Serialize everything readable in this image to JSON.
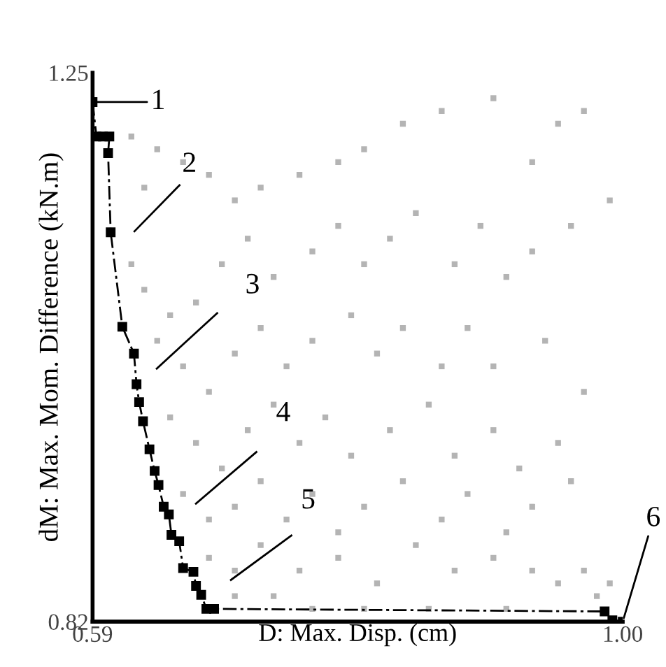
{
  "chart_data": {
    "type": "scatter",
    "xlabel": "D: Max. Disp. (cm)",
    "ylabel": "dM: Max. Mom. Difference (kN.m)",
    "xlim": [
      0.59,
      1.0
    ],
    "ylim": [
      0.82,
      1.25
    ],
    "xticks": [
      0.59,
      {
        "value": 1.0,
        "label": "1.00"
      }
    ],
    "yticks": [
      0.82,
      1.25
    ],
    "grid": false,
    "legend": false,
    "series": [
      {
        "color": "#b4b4b4",
        "marker": "square",
        "x": [
          0.62,
          0.64,
          0.66,
          0.63,
          0.68,
          0.7,
          0.72,
          0.75,
          0.78,
          0.8,
          0.83,
          0.86,
          0.9,
          0.95,
          0.97,
          0.93,
          0.62,
          0.63,
          0.65,
          0.64,
          0.67,
          0.69,
          0.71,
          0.73,
          0.76,
          0.78,
          0.8,
          0.82,
          0.84,
          0.87,
          0.89,
          0.91,
          0.93,
          0.96,
          0.99,
          0.66,
          0.68,
          0.7,
          0.72,
          0.74,
          0.76,
          0.79,
          0.81,
          0.83,
          0.86,
          0.88,
          0.9,
          0.94,
          0.97,
          0.65,
          0.67,
          0.69,
          0.71,
          0.73,
          0.75,
          0.77,
          0.79,
          0.82,
          0.85,
          0.87,
          0.9,
          0.92,
          0.95,
          0.66,
          0.68,
          0.7,
          0.72,
          0.74,
          0.76,
          0.78,
          0.8,
          0.83,
          0.86,
          0.88,
          0.91,
          0.93,
          0.96,
          0.68,
          0.7,
          0.72,
          0.75,
          0.78,
          0.81,
          0.84,
          0.87,
          0.9,
          0.93,
          0.95,
          0.97,
          0.98,
          0.99,
          0.7,
          0.73,
          0.76,
          0.8,
          0.85,
          0.91
        ],
        "values": [
          1.2,
          1.19,
          1.18,
          1.16,
          1.17,
          1.15,
          1.16,
          1.17,
          1.18,
          1.19,
          1.21,
          1.22,
          1.23,
          1.21,
          1.22,
          1.18,
          1.1,
          1.08,
          1.06,
          1.04,
          1.07,
          1.1,
          1.12,
          1.09,
          1.11,
          1.13,
          1.1,
          1.12,
          1.14,
          1.1,
          1.13,
          1.09,
          1.11,
          1.13,
          1.15,
          1.02,
          1.0,
          1.03,
          1.05,
          1.02,
          1.04,
          1.06,
          1.03,
          1.05,
          1.02,
          1.05,
          1.02,
          1.04,
          1.0,
          0.98,
          0.96,
          0.94,
          0.97,
          0.99,
          0.96,
          0.98,
          0.95,
          0.97,
          0.99,
          0.95,
          0.97,
          0.94,
          0.96,
          0.92,
          0.9,
          0.91,
          0.93,
          0.9,
          0.92,
          0.89,
          0.91,
          0.93,
          0.9,
          0.92,
          0.89,
          0.91,
          0.93,
          0.87,
          0.86,
          0.88,
          0.86,
          0.87,
          0.85,
          0.88,
          0.86,
          0.87,
          0.86,
          0.85,
          0.86,
          0.84,
          0.85,
          0.84,
          0.84,
          0.83,
          0.83,
          0.83,
          0.83
        ]
      },
      {
        "type": "line",
        "color": "#000000",
        "marker": "square",
        "line_style": "dashed",
        "x": [
          0.59,
          0.593,
          0.598,
          0.603,
          0.602,
          0.604,
          0.613,
          0.622,
          0.624,
          0.626,
          0.629,
          0.634,
          0.638,
          0.641,
          0.645,
          0.649,
          0.651,
          0.657,
          0.66,
          0.668,
          0.67,
          0.674,
          0.678,
          0.684,
          0.986,
          0.992,
          1.0
        ],
        "values": [
          1.227,
          1.2,
          1.2,
          1.2,
          1.187,
          1.125,
          1.051,
          1.03,
          1.006,
          0.992,
          0.977,
          0.955,
          0.938,
          0.927,
          0.91,
          0.904,
          0.888,
          0.883,
          0.862,
          0.859,
          0.848,
          0.841,
          0.83,
          0.83,
          0.828,
          0.821,
          0.82
        ]
      }
    ],
    "annotations": [
      {
        "text": "1",
        "x": 0.59,
        "y": 1.227
      },
      "2",
      "3",
      "4",
      "5",
      {
        "text": "6",
        "x": 1.0,
        "y": 0.82
      }
    ]
  }
}
